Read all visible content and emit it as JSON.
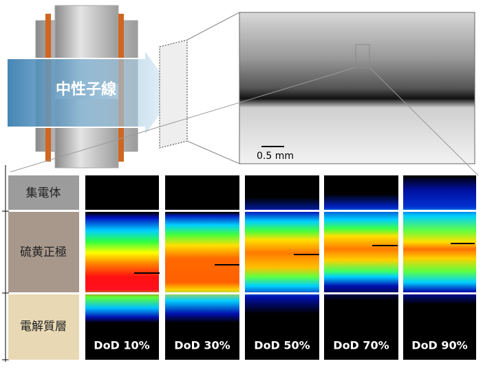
{
  "illustration": {
    "beam_label": "中性子線"
  },
  "micrograph": {
    "scale_bar": "0.5 mm"
  },
  "layers": [
    "集電体",
    "硫黄正極",
    "電解質層"
  ],
  "panels": [
    "DoD 10%",
    "DoD 30%",
    "DoD 50%",
    "DoD 70%",
    "DoD 90%"
  ]
}
